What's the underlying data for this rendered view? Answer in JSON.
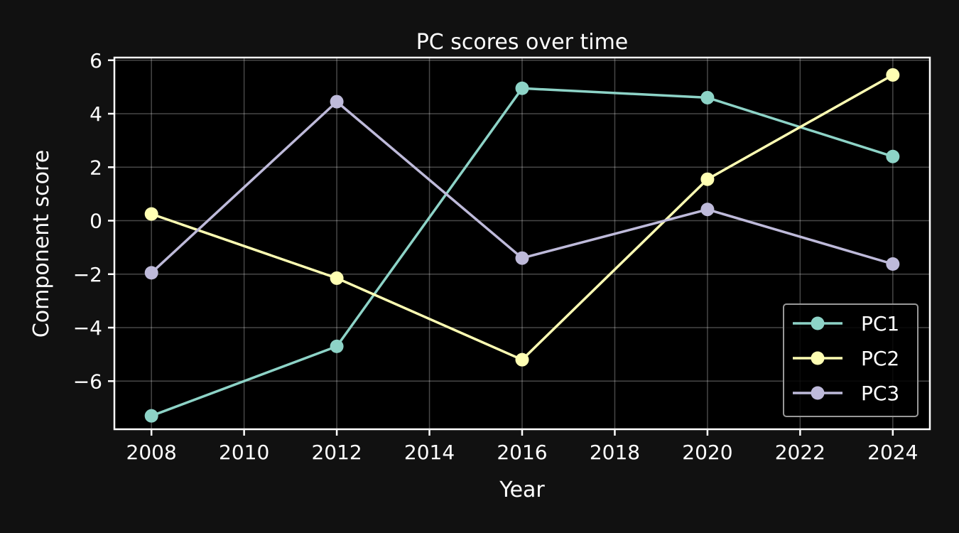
{
  "chart_data": {
    "type": "line",
    "title": "PC scores over time",
    "xlabel": "Year",
    "ylabel": "Component score",
    "xlim": [
      2007.2,
      2024.8
    ],
    "ylim": [
      -7.8,
      6.1
    ],
    "xticks": [
      2008,
      2010,
      2012,
      2014,
      2016,
      2018,
      2020,
      2022,
      2024
    ],
    "yticks": [
      -6,
      -4,
      -2,
      0,
      2,
      4,
      6
    ],
    "grid": true,
    "legend_position": "lower-right",
    "x": [
      2008,
      2012,
      2016,
      2020,
      2024
    ],
    "series": [
      {
        "name": "PC1",
        "color": "#8dd3c7",
        "values": [
          -7.3,
          -4.7,
          4.95,
          4.6,
          2.4
        ]
      },
      {
        "name": "PC2",
        "color": "#ffffb3",
        "values": [
          0.25,
          -2.15,
          -5.2,
          1.55,
          5.45
        ]
      },
      {
        "name": "PC3",
        "color": "#bebada",
        "values": [
          -1.95,
          4.45,
          -1.4,
          0.42,
          -1.62
        ]
      }
    ]
  }
}
